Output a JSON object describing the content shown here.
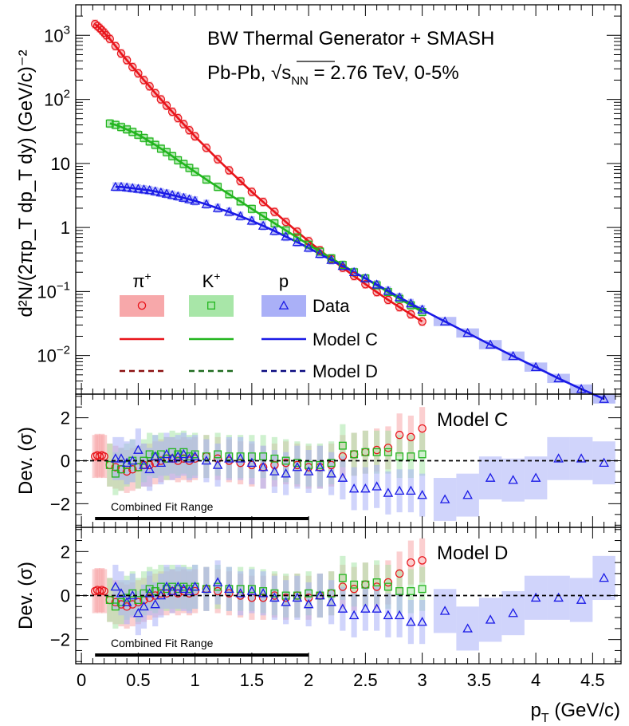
{
  "chart_data": [
    {
      "type": "scatter",
      "panel": "spectra",
      "title_line1": "BW Thermal Generator + SMASH",
      "title_line2_prefix": "Pb-Pb, ",
      "title_sqrt_s": "s",
      "title_sub": "NN",
      "title_line2_suffix": " = 2.76 TeV, 0-5%",
      "ylabel": "d²N/(2πp_T dp_T dy) (GeV/c)⁻²",
      "yscale": "log",
      "ylim": [
        0.0025,
        3000
      ],
      "xlim": [
        -0.05,
        4.75
      ],
      "y_ticks": [
        {
          "value": 0.01,
          "label": "10",
          "exp": "−2"
        },
        {
          "value": 0.1,
          "label": "10",
          "exp": "−1"
        },
        {
          "value": 1,
          "label": "1",
          "exp": ""
        },
        {
          "value": 10,
          "label": "10",
          "exp": ""
        },
        {
          "value": 100,
          "label": "10",
          "exp": "2"
        },
        {
          "value": 1000,
          "label": "10",
          "exp": "3"
        }
      ],
      "legend": {
        "headers": [
          {
            "base": "π",
            "sup": "+"
          },
          {
            "base": "K",
            "sup": "+"
          },
          {
            "base": "p",
            "sup": ""
          }
        ],
        "rows": [
          "Data",
          "Model C",
          "Model D"
        ]
      },
      "series": [
        {
          "name": "π+",
          "color": "#e8141a",
          "band": "#f7a8aa",
          "marker": "circle",
          "x": [
            0.12,
            0.14,
            0.16,
            0.18,
            0.2,
            0.22,
            0.25,
            0.3,
            0.35,
            0.4,
            0.45,
            0.5,
            0.55,
            0.6,
            0.65,
            0.7,
            0.75,
            0.8,
            0.85,
            0.9,
            0.95,
            1.0,
            1.1,
            1.2,
            1.3,
            1.4,
            1.5,
            1.6,
            1.7,
            1.8,
            1.9,
            2.0,
            2.1,
            2.2,
            2.3,
            2.4,
            2.5,
            2.6,
            2.7,
            2.8,
            2.9,
            3.0
          ],
          "y": [
            1500,
            1400,
            1300,
            1200,
            1100,
            1000,
            880,
            680,
            520,
            410,
            320,
            255,
            200,
            160,
            125,
            100,
            80,
            64,
            51,
            41,
            33,
            26.5,
            17.5,
            11.6,
            7.8,
            5.3,
            3.6,
            2.5,
            1.75,
            1.22,
            0.86,
            0.61,
            0.44,
            0.32,
            0.235,
            0.175,
            0.13,
            0.098,
            0.074,
            0.057,
            0.044,
            0.034
          ]
        },
        {
          "name": "K+",
          "color": "#22b51e",
          "band": "#a8e6a8",
          "marker": "square",
          "x": [
            0.25,
            0.3,
            0.35,
            0.4,
            0.45,
            0.5,
            0.55,
            0.6,
            0.65,
            0.7,
            0.75,
            0.8,
            0.85,
            0.9,
            0.95,
            1.0,
            1.1,
            1.2,
            1.3,
            1.4,
            1.5,
            1.6,
            1.7,
            1.8,
            1.9,
            2.0,
            2.1,
            2.2,
            2.3,
            2.4,
            2.5,
            2.6,
            2.7,
            2.8,
            2.9,
            3.0
          ],
          "y": [
            42,
            40,
            37,
            34,
            31,
            28,
            25,
            22,
            19.5,
            17,
            15,
            13,
            11.2,
            9.8,
            8.5,
            7.4,
            5.6,
            4.3,
            3.3,
            2.55,
            1.95,
            1.5,
            1.16,
            0.9,
            0.7,
            0.54,
            0.42,
            0.33,
            0.26,
            0.2,
            0.16,
            0.125,
            0.098,
            0.077,
            0.061,
            0.048
          ]
        },
        {
          "name": "p",
          "color": "#1a1ae6",
          "band": "#aab0f7",
          "marker": "triangle",
          "x": [
            0.3,
            0.35,
            0.4,
            0.45,
            0.5,
            0.55,
            0.6,
            0.65,
            0.7,
            0.75,
            0.8,
            0.85,
            0.9,
            0.95,
            1.0,
            1.1,
            1.2,
            1.3,
            1.4,
            1.5,
            1.6,
            1.7,
            1.8,
            1.9,
            2.0,
            2.1,
            2.2,
            2.3,
            2.4,
            2.5,
            2.6,
            2.7,
            2.8,
            2.9,
            3.0,
            3.2,
            3.4,
            3.6,
            3.8,
            4.0,
            4.2,
            4.4,
            4.6
          ],
          "y": [
            4.3,
            4.3,
            4.2,
            4.1,
            4.0,
            3.9,
            3.8,
            3.65,
            3.5,
            3.35,
            3.2,
            3.05,
            2.9,
            2.75,
            2.6,
            2.3,
            2.0,
            1.75,
            1.5,
            1.27,
            1.06,
            0.88,
            0.72,
            0.59,
            0.48,
            0.385,
            0.31,
            0.25,
            0.2,
            0.16,
            0.128,
            0.102,
            0.081,
            0.065,
            0.052,
            0.034,
            0.0225,
            0.0148,
            0.0098,
            0.0066,
            0.0044,
            0.003,
            0.0021
          ]
        }
      ]
    },
    {
      "type": "scatter",
      "panel": "deviation_model_c",
      "label": "Model C",
      "ylabel": "Dev. (σ)",
      "ylim": [
        -3.1,
        3.1
      ],
      "y_ticks": [
        -2,
        0,
        2
      ],
      "fit_range_label": "Combined Fit Range",
      "fit_range": [
        0.12,
        2.0
      ],
      "series": [
        {
          "name": "π+",
          "x": [
            0.12,
            0.14,
            0.16,
            0.18,
            0.2,
            0.25,
            0.3,
            0.35,
            0.4,
            0.45,
            0.5,
            0.55,
            0.6,
            0.65,
            0.7,
            0.75,
            0.8,
            0.85,
            0.9,
            0.95,
            1.0,
            1.1,
            1.2,
            1.3,
            1.4,
            1.5,
            1.6,
            1.7,
            1.8,
            1.9,
            2.0,
            2.1,
            2.2,
            2.3,
            2.4,
            2.5,
            2.6,
            2.7,
            2.8,
            2.9,
            3.0
          ],
          "y": [
            0.2,
            0.25,
            0.2,
            0.25,
            0.2,
            -0.2,
            -0.3,
            -0.4,
            -0.5,
            -0.4,
            -0.3,
            -0.2,
            -0.2,
            -0.1,
            0.0,
            0.1,
            0.1,
            0.0,
            0.1,
            0.0,
            0.1,
            0.2,
            0.1,
            0.0,
            -0.1,
            -0.2,
            -0.3,
            -0.2,
            -0.1,
            -0.2,
            -0.3,
            -0.3,
            -0.2,
            0.2,
            0.3,
            0.4,
            0.5,
            0.6,
            1.2,
            1.1,
            1.5
          ]
        },
        {
          "name": "K+",
          "x": [
            0.25,
            0.3,
            0.35,
            0.4,
            0.45,
            0.5,
            0.55,
            0.6,
            0.65,
            0.7,
            0.75,
            0.8,
            0.85,
            0.9,
            0.95,
            1.0,
            1.1,
            1.2,
            1.3,
            1.4,
            1.5,
            1.6,
            1.7,
            1.8,
            1.9,
            2.0,
            2.1,
            2.2,
            2.3,
            2.4,
            2.5,
            2.6,
            2.7,
            2.8,
            2.9,
            3.0
          ],
          "y": [
            -0.2,
            -0.6,
            -0.4,
            -0.2,
            0.0,
            -0.3,
            0.0,
            0.3,
            0.2,
            0.3,
            0.1,
            0.4,
            0.3,
            0.4,
            0.2,
            0.3,
            0.2,
            0.3,
            0.2,
            0.2,
            0.2,
            0.2,
            0.1,
            0.0,
            -0.1,
            -0.2,
            -0.2,
            -0.1,
            0.7,
            0.3,
            0.4,
            0.4,
            0.4,
            0.2,
            0.2,
            0.3
          ]
        },
        {
          "name": "p",
          "x": [
            0.3,
            0.35,
            0.4,
            0.45,
            0.5,
            0.55,
            0.6,
            0.65,
            0.7,
            0.75,
            0.8,
            0.85,
            0.9,
            0.95,
            1.0,
            1.1,
            1.2,
            1.3,
            1.4,
            1.5,
            1.6,
            1.7,
            1.8,
            1.9,
            2.0,
            2.1,
            2.2,
            2.3,
            2.4,
            2.5,
            2.6,
            2.7,
            2.8,
            2.9,
            3.0,
            3.2,
            3.4,
            3.6,
            3.8,
            4.0,
            4.2,
            4.4,
            4.6
          ],
          "y": [
            0.1,
            0.1,
            -0.1,
            0.0,
            0.5,
            -0.2,
            -0.4,
            0.2,
            -0.1,
            0.3,
            0.1,
            0.2,
            0.3,
            0.1,
            0.2,
            0.0,
            -0.2,
            0.1,
            0.1,
            -0.1,
            -0.3,
            -0.5,
            -0.6,
            -0.3,
            -0.5,
            -0.3,
            -0.6,
            -0.8,
            -1.3,
            -1.3,
            -1.2,
            -1.5,
            -1.4,
            -1.4,
            -1.6,
            -1.8,
            -1.6,
            -0.8,
            -0.9,
            -0.8,
            0.1,
            0.1,
            -0.1
          ]
        }
      ]
    },
    {
      "type": "scatter",
      "panel": "deviation_model_d",
      "label": "Model D",
      "ylabel": "Dev. (σ)",
      "xlabel_base": "p",
      "xlabel_sub": "T",
      "xlabel_unit": " (GeV/c)",
      "ylim": [
        -3.1,
        3.1
      ],
      "y_ticks": [
        -2,
        0,
        2
      ],
      "x_ticks": [
        0,
        0.5,
        1,
        1.5,
        2,
        2.5,
        3,
        3.5,
        4,
        4.5
      ],
      "x_tick_labels": [
        "0",
        "0.5",
        "1",
        "1.5",
        "2",
        "2.5",
        "3",
        "3.5",
        "4",
        "4.5"
      ],
      "fit_range_label": "Combined Fit Range",
      "fit_range": [
        0.12,
        2.0
      ],
      "series": [
        {
          "name": "π+",
          "x": [
            0.12,
            0.14,
            0.16,
            0.18,
            0.2,
            0.25,
            0.3,
            0.35,
            0.4,
            0.45,
            0.5,
            0.55,
            0.6,
            0.65,
            0.7,
            0.75,
            0.8,
            0.85,
            0.9,
            0.95,
            1.0,
            1.1,
            1.2,
            1.3,
            1.4,
            1.5,
            1.6,
            1.7,
            1.8,
            1.9,
            2.0,
            2.1,
            2.2,
            2.3,
            2.4,
            2.5,
            2.6,
            2.7,
            2.8,
            2.9,
            3.0
          ],
          "y": [
            0.2,
            0.25,
            0.2,
            0.25,
            0.2,
            -0.2,
            -0.3,
            -0.4,
            -0.5,
            -0.4,
            -0.3,
            -0.2,
            -0.1,
            0.0,
            0.1,
            0.1,
            0.2,
            0.1,
            0.2,
            0.1,
            0.2,
            0.3,
            0.2,
            0.1,
            0.0,
            -0.1,
            -0.1,
            0.0,
            -0.1,
            0.0,
            -0.1,
            0.0,
            0.1,
            0.4,
            0.3,
            0.5,
            0.4,
            0.6,
            1.0,
            1.5,
            1.6
          ]
        },
        {
          "name": "K+",
          "x": [
            0.25,
            0.3,
            0.35,
            0.4,
            0.45,
            0.5,
            0.55,
            0.6,
            0.65,
            0.7,
            0.75,
            0.8,
            0.85,
            0.9,
            0.95,
            1.0,
            1.1,
            1.2,
            1.3,
            1.4,
            1.5,
            1.6,
            1.7,
            1.8,
            1.9,
            2.0,
            2.1,
            2.2,
            2.3,
            2.4,
            2.5,
            2.6,
            2.7,
            2.8,
            2.9,
            3.0
          ],
          "y": [
            -0.2,
            -0.5,
            -0.3,
            -0.1,
            0.1,
            -0.2,
            0.1,
            0.3,
            0.2,
            0.4,
            0.3,
            0.4,
            0.3,
            0.4,
            0.3,
            0.4,
            0.3,
            0.4,
            0.3,
            0.3,
            0.3,
            0.2,
            0.1,
            0.0,
            0.0,
            0.1,
            0.0,
            0.1,
            0.8,
            0.5,
            0.5,
            0.6,
            0.4,
            0.2,
            0.2,
            0.3
          ]
        },
        {
          "name": "p",
          "x": [
            0.3,
            0.35,
            0.4,
            0.45,
            0.5,
            0.55,
            0.6,
            0.65,
            0.7,
            0.75,
            0.8,
            0.85,
            0.9,
            0.95,
            1.0,
            1.1,
            1.2,
            1.3,
            1.4,
            1.5,
            1.6,
            1.7,
            1.8,
            1.9,
            2.0,
            2.1,
            2.2,
            2.3,
            2.4,
            2.5,
            2.6,
            2.7,
            2.8,
            2.9,
            3.0,
            3.2,
            3.4,
            3.6,
            3.8,
            4.0,
            4.2,
            4.4,
            4.6
          ],
          "y": [
            0.4,
            0.1,
            -0.3,
            0.0,
            -0.8,
            -0.5,
            0.1,
            -0.4,
            0.0,
            0.4,
            0.2,
            0.4,
            0.3,
            0.2,
            0.4,
            0.3,
            0.6,
            0.3,
            0.1,
            0.2,
            0.1,
            -0.1,
            -0.3,
            -0.1,
            -0.4,
            0.0,
            -0.3,
            -0.6,
            -0.9,
            -0.6,
            -0.6,
            -0.9,
            -0.9,
            -1.2,
            -1.2,
            -0.7,
            -1.5,
            -1.1,
            -0.8,
            -0.1,
            -0.1,
            -0.2,
            0.8
          ]
        }
      ]
    }
  ]
}
